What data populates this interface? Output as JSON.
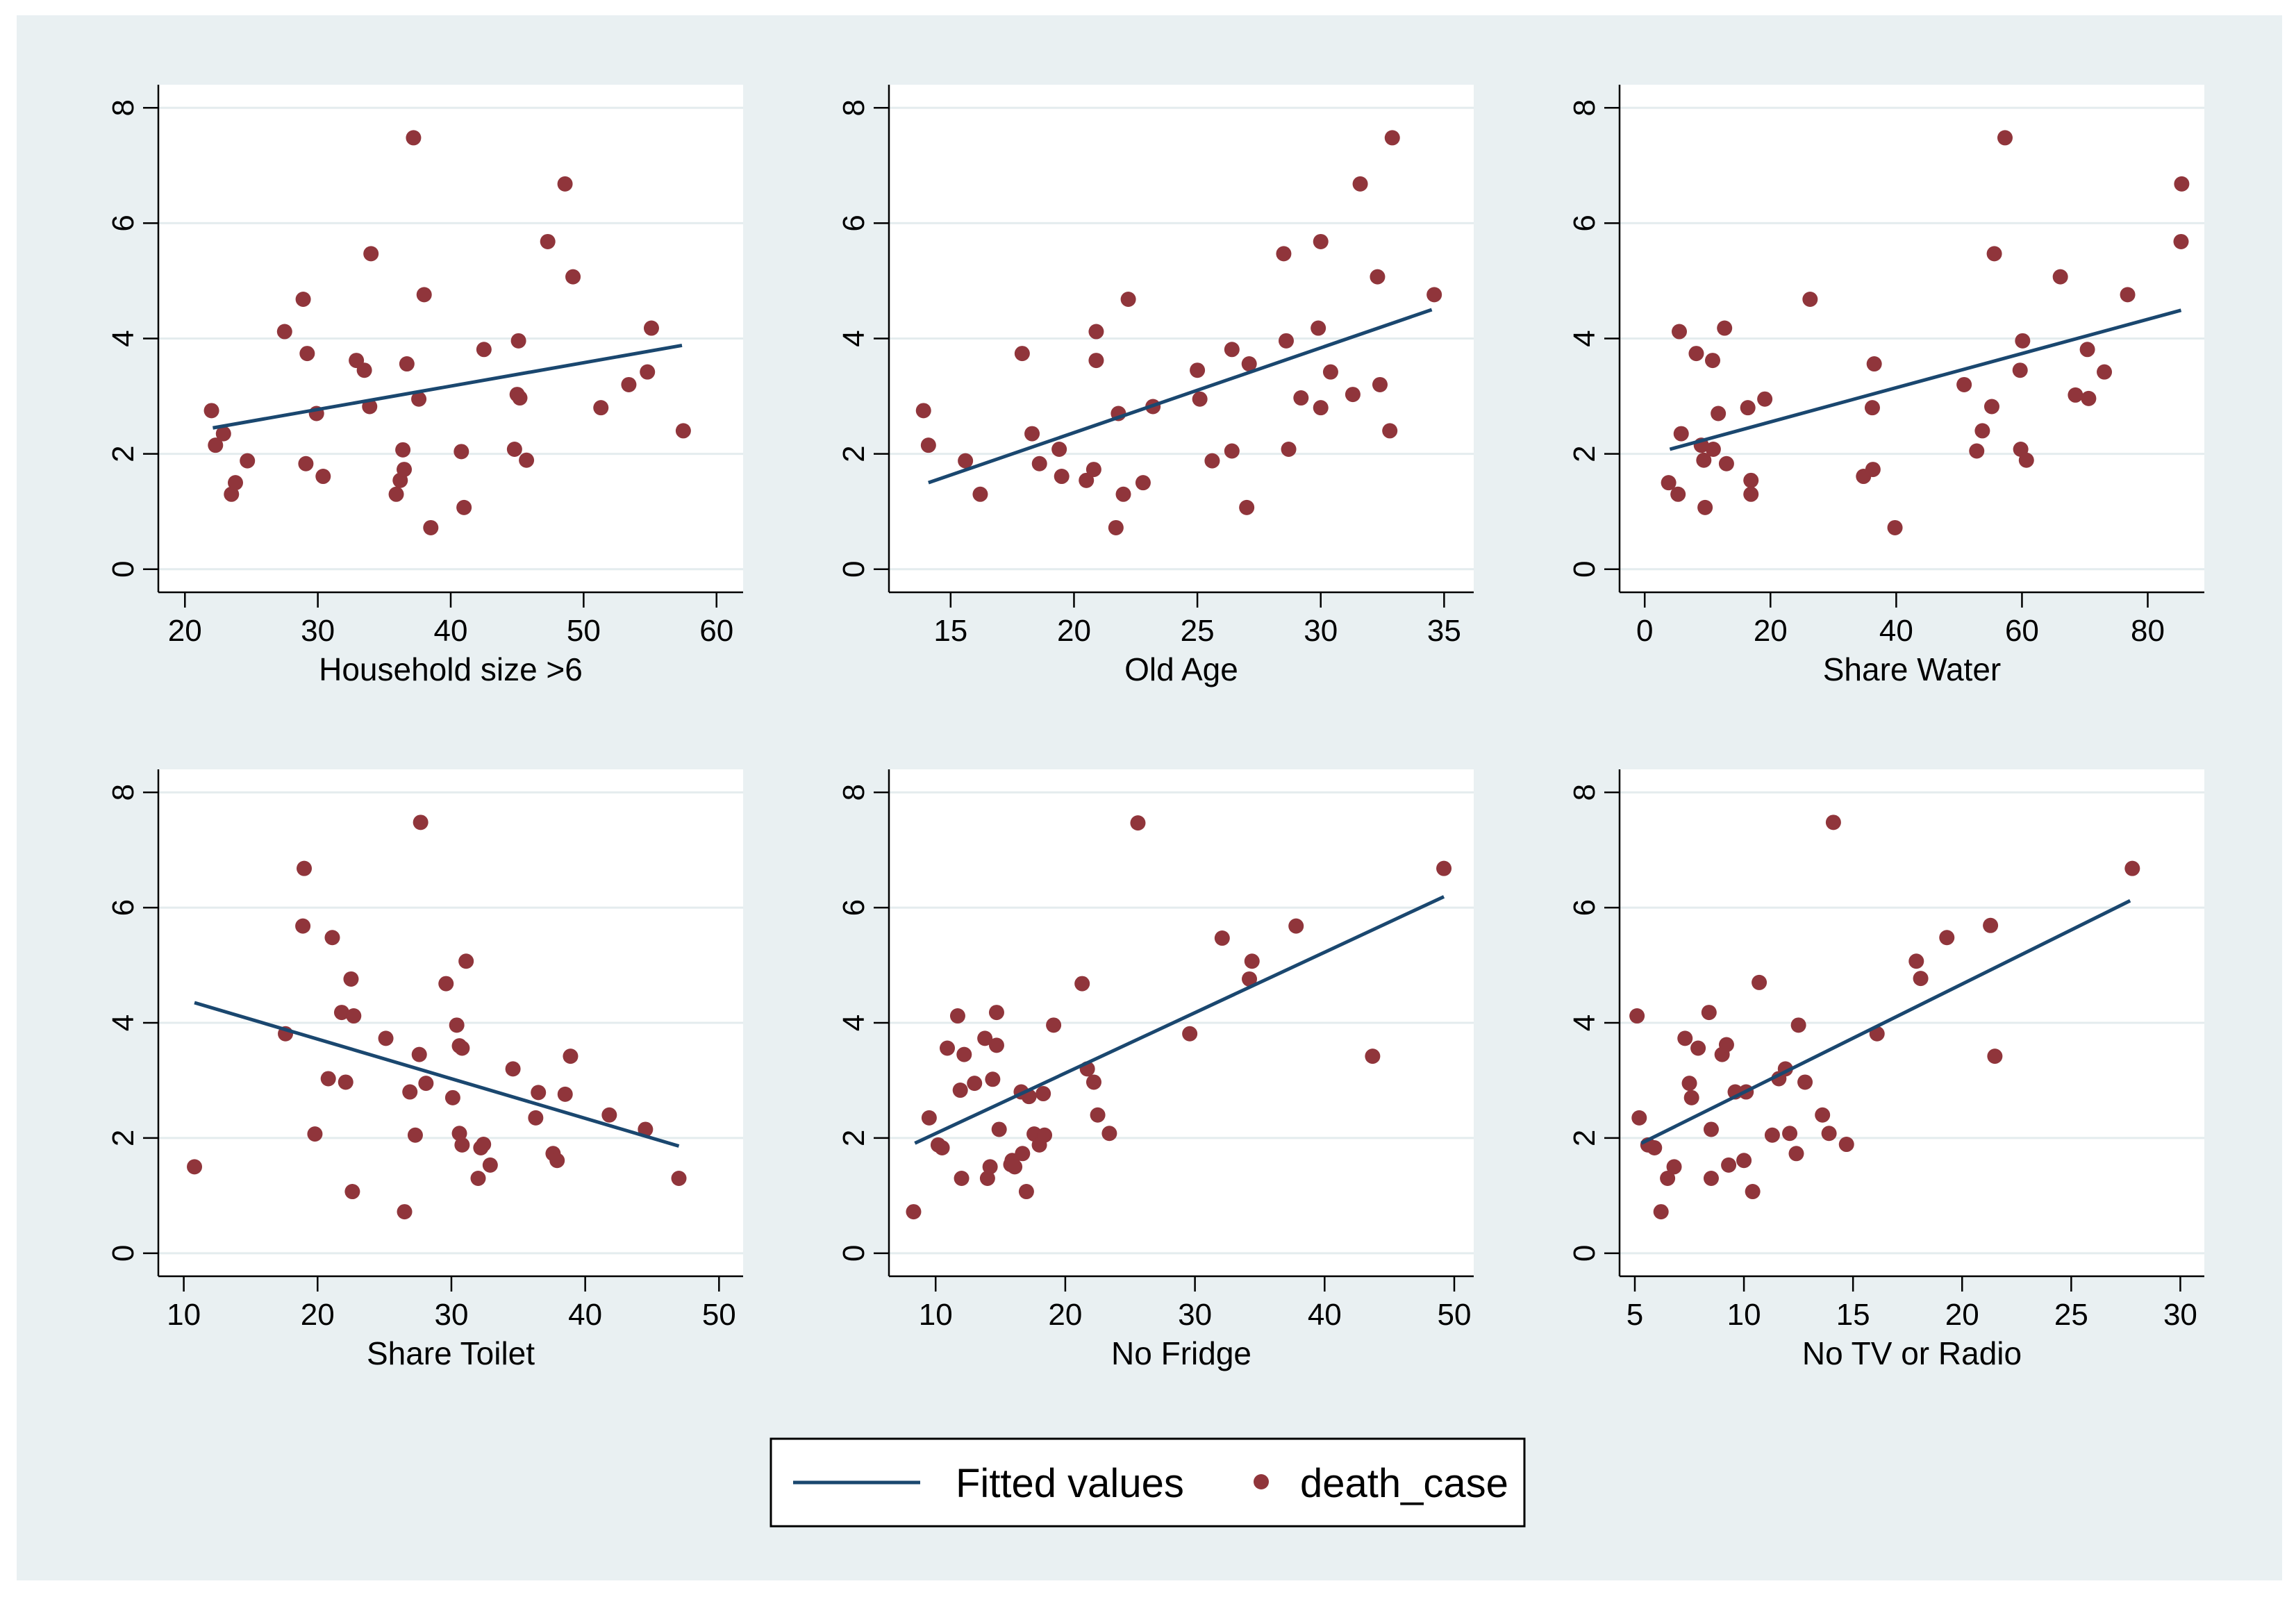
{
  "colors": {
    "outer_background": "#e9f0f2",
    "plot_background": "#ffffff",
    "gridline": "#e4ecee",
    "axis": "#000000",
    "fit_line": "#1a476f",
    "marker": "#90353b"
  },
  "legend": {
    "fitted_label": "Fitted values",
    "points_label": "death_case",
    "placement": "bottom-center"
  },
  "chart_data": [
    {
      "type": "scatter",
      "overlay": "linear-fit",
      "title": "",
      "xlabel": "Household size >6",
      "ylabel": "",
      "xlim": [
        18,
        62
      ],
      "ylim": [
        -0.4,
        8.4
      ],
      "xticks": [
        20,
        30,
        40,
        50,
        60
      ],
      "yticks": [
        0,
        2,
        4,
        6,
        8
      ],
      "grid": true,
      "fit": {
        "x": [
          22.1,
          57.4
        ],
        "y": [
          2.45,
          3.88
        ]
      },
      "points": [
        [
          22.0,
          2.75
        ],
        [
          22.3,
          2.15
        ],
        [
          22.9,
          2.35
        ],
        [
          23.5,
          1.3
        ],
        [
          23.8,
          1.5
        ],
        [
          24.7,
          1.88
        ],
        [
          27.5,
          4.12
        ],
        [
          28.9,
          4.68
        ],
        [
          29.1,
          1.83
        ],
        [
          29.2,
          3.74
        ],
        [
          29.9,
          2.7
        ],
        [
          30.4,
          1.61
        ],
        [
          32.9,
          3.62
        ],
        [
          33.5,
          3.45
        ],
        [
          33.9,
          2.82
        ],
        [
          34.0,
          5.47
        ],
        [
          35.9,
          1.3
        ],
        [
          36.2,
          1.54
        ],
        [
          36.4,
          2.07
        ],
        [
          36.5,
          1.73
        ],
        [
          36.7,
          3.56
        ],
        [
          37.2,
          7.48
        ],
        [
          37.6,
          2.95
        ],
        [
          38.0,
          4.76
        ],
        [
          38.5,
          0.72
        ],
        [
          40.8,
          2.04
        ],
        [
          41.0,
          1.07
        ],
        [
          42.5,
          3.81
        ],
        [
          44.8,
          2.08
        ],
        [
          45.0,
          3.03
        ],
        [
          45.1,
          3.96
        ],
        [
          45.2,
          2.97
        ],
        [
          45.7,
          1.89
        ],
        [
          47.3,
          5.68
        ],
        [
          48.6,
          6.68
        ],
        [
          49.2,
          5.07
        ],
        [
          51.3,
          2.8
        ],
        [
          53.4,
          3.2
        ],
        [
          54.8,
          3.42
        ],
        [
          55.1,
          4.18
        ],
        [
          57.5,
          2.4
        ]
      ]
    },
    {
      "type": "scatter",
      "overlay": "linear-fit",
      "title": "",
      "xlabel": "Old Age",
      "ylabel": "",
      "xlim": [
        12.5,
        36.2
      ],
      "ylim": [
        -0.4,
        8.4
      ],
      "xticks": [
        15,
        20,
        25,
        30,
        35
      ],
      "yticks": [
        0,
        2,
        4,
        6,
        8
      ],
      "grid": true,
      "fit": {
        "x": [
          14.1,
          34.5
        ],
        "y": [
          1.5,
          4.5
        ]
      },
      "points": [
        [
          13.9,
          2.75
        ],
        [
          14.1,
          2.15
        ],
        [
          15.6,
          1.88
        ],
        [
          16.2,
          1.3
        ],
        [
          17.9,
          3.74
        ],
        [
          18.3,
          2.35
        ],
        [
          18.6,
          1.83
        ],
        [
          19.4,
          2.08
        ],
        [
          19.5,
          1.61
        ],
        [
          20.5,
          1.54
        ],
        [
          20.8,
          1.73
        ],
        [
          20.9,
          4.12
        ],
        [
          20.9,
          3.62
        ],
        [
          21.7,
          0.72
        ],
        [
          21.8,
          2.7
        ],
        [
          22.0,
          1.3
        ],
        [
          22.2,
          4.68
        ],
        [
          22.8,
          1.5
        ],
        [
          23.2,
          2.82
        ],
        [
          25.0,
          3.45
        ],
        [
          25.1,
          2.95
        ],
        [
          25.6,
          1.88
        ],
        [
          26.4,
          3.81
        ],
        [
          26.4,
          2.05
        ],
        [
          27.0,
          1.07
        ],
        [
          27.1,
          3.56
        ],
        [
          28.5,
          5.47
        ],
        [
          28.6,
          3.96
        ],
        [
          28.7,
          2.08
        ],
        [
          29.2,
          2.97
        ],
        [
          29.9,
          4.18
        ],
        [
          30.0,
          5.68
        ],
        [
          30.0,
          2.8
        ],
        [
          30.4,
          3.42
        ],
        [
          31.3,
          3.03
        ],
        [
          31.6,
          6.68
        ],
        [
          32.3,
          5.07
        ],
        [
          32.4,
          3.2
        ],
        [
          32.8,
          2.4
        ],
        [
          32.9,
          7.48
        ],
        [
          34.6,
          4.76
        ]
      ]
    },
    {
      "type": "scatter",
      "overlay": "linear-fit",
      "title": "",
      "xlabel": "Share Water",
      "ylabel": "",
      "xlim": [
        -4,
        89
      ],
      "ylim": [
        -0.4,
        8.4
      ],
      "xticks": [
        0,
        20,
        40,
        60,
        80
      ],
      "yticks": [
        0,
        2,
        4,
        6,
        8
      ],
      "grid": true,
      "fit": {
        "x": [
          4.0,
          85.3
        ],
        "y": [
          2.08,
          4.49
        ]
      },
      "points": [
        [
          3.8,
          1.5
        ],
        [
          5.3,
          1.3
        ],
        [
          5.5,
          4.12
        ],
        [
          5.8,
          2.35
        ],
        [
          8.2,
          3.74
        ],
        [
          9.0,
          2.15
        ],
        [
          9.4,
          1.89
        ],
        [
          9.6,
          1.07
        ],
        [
          10.8,
          3.62
        ],
        [
          10.9,
          2.08
        ],
        [
          11.7,
          2.7
        ],
        [
          12.7,
          4.18
        ],
        [
          13.0,
          1.83
        ],
        [
          16.4,
          2.8
        ],
        [
          16.9,
          1.54
        ],
        [
          16.9,
          1.3
        ],
        [
          19.1,
          2.95
        ],
        [
          26.3,
          4.68
        ],
        [
          34.8,
          1.61
        ],
        [
          36.2,
          2.8
        ],
        [
          36.3,
          1.73
        ],
        [
          36.5,
          3.56
        ],
        [
          39.8,
          0.72
        ],
        [
          50.8,
          3.2
        ],
        [
          52.8,
          2.05
        ],
        [
          53.7,
          2.4
        ],
        [
          55.2,
          2.82
        ],
        [
          55.6,
          5.47
        ],
        [
          57.3,
          7.48
        ],
        [
          59.7,
          3.45
        ],
        [
          59.8,
          2.08
        ],
        [
          60.1,
          3.96
        ],
        [
          60.7,
          1.89
        ],
        [
          66.1,
          5.07
        ],
        [
          68.5,
          3.02
        ],
        [
          70.4,
          3.81
        ],
        [
          70.6,
          2.96
        ],
        [
          73.1,
          3.42
        ],
        [
          76.8,
          4.76
        ],
        [
          85.3,
          5.68
        ],
        [
          85.4,
          6.68
        ]
      ]
    },
    {
      "type": "scatter",
      "overlay": "linear-fit",
      "title": "",
      "xlabel": "Share Toilet",
      "ylabel": "",
      "xlim": [
        8.1,
        51.8
      ],
      "ylim": [
        -0.4,
        8.4
      ],
      "xticks": [
        10,
        20,
        30,
        40,
        50
      ],
      "yticks": [
        0,
        2,
        4,
        6,
        8
      ],
      "grid": true,
      "fit": {
        "x": [
          10.8,
          47.0
        ],
        "y": [
          4.35,
          1.86
        ]
      },
      "points": [
        [
          10.8,
          1.5
        ],
        [
          17.6,
          3.81
        ],
        [
          18.9,
          5.68
        ],
        [
          19.0,
          6.68
        ],
        [
          19.8,
          2.07
        ],
        [
          20.8,
          3.03
        ],
        [
          21.1,
          5.48
        ],
        [
          21.8,
          4.18
        ],
        [
          22.1,
          2.97
        ],
        [
          22.5,
          4.76
        ],
        [
          22.6,
          1.07
        ],
        [
          22.7,
          4.12
        ],
        [
          25.1,
          3.73
        ],
        [
          26.5,
          0.72
        ],
        [
          26.9,
          2.8
        ],
        [
          27.3,
          2.05
        ],
        [
          27.6,
          3.45
        ],
        [
          27.7,
          7.48
        ],
        [
          28.1,
          2.95
        ],
        [
          29.6,
          4.68
        ],
        [
          30.1,
          2.7
        ],
        [
          30.4,
          3.96
        ],
        [
          30.6,
          3.6
        ],
        [
          30.6,
          2.08
        ],
        [
          30.8,
          3.56
        ],
        [
          30.8,
          1.88
        ],
        [
          31.1,
          5.07
        ],
        [
          32.0,
          1.3
        ],
        [
          32.2,
          1.83
        ],
        [
          32.4,
          1.89
        ],
        [
          32.9,
          1.53
        ],
        [
          34.6,
          3.2
        ],
        [
          36.3,
          2.35
        ],
        [
          36.5,
          2.79
        ],
        [
          37.6,
          1.73
        ],
        [
          37.9,
          1.61
        ],
        [
          38.5,
          2.76
        ],
        [
          38.9,
          3.42
        ],
        [
          41.8,
          2.4
        ],
        [
          44.5,
          2.15
        ],
        [
          47.0,
          1.3
        ]
      ]
    },
    {
      "type": "scatter",
      "overlay": "linear-fit",
      "title": "",
      "xlabel": "No Fridge",
      "ylabel": "",
      "xlim": [
        6.4,
        51.5
      ],
      "ylim": [
        -0.4,
        8.4
      ],
      "xticks": [
        10,
        20,
        30,
        40,
        50
      ],
      "yticks": [
        0,
        2,
        4,
        6,
        8
      ],
      "grid": true,
      "fit": {
        "x": [
          8.4,
          49.2
        ],
        "y": [
          1.91,
          6.19
        ]
      },
      "points": [
        [
          8.3,
          0.72
        ],
        [
          9.5,
          2.35
        ],
        [
          10.2,
          1.88
        ],
        [
          10.5,
          1.83
        ],
        [
          10.9,
          3.56
        ],
        [
          11.7,
          4.12
        ],
        [
          11.9,
          2.83
        ],
        [
          12.0,
          1.3
        ],
        [
          12.2,
          3.45
        ],
        [
          13.0,
          2.95
        ],
        [
          13.8,
          3.73
        ],
        [
          14.0,
          1.3
        ],
        [
          14.2,
          1.5
        ],
        [
          14.4,
          3.02
        ],
        [
          14.7,
          4.18
        ],
        [
          14.7,
          3.61
        ],
        [
          14.9,
          2.15
        ],
        [
          15.8,
          1.54
        ],
        [
          15.9,
          1.61
        ],
        [
          16.1,
          1.5
        ],
        [
          16.6,
          2.8
        ],
        [
          16.7,
          1.73
        ],
        [
          17.0,
          1.07
        ],
        [
          17.2,
          2.72
        ],
        [
          17.6,
          2.07
        ],
        [
          18.0,
          1.88
        ],
        [
          18.3,
          2.77
        ],
        [
          18.4,
          2.05
        ],
        [
          19.1,
          3.96
        ],
        [
          21.3,
          4.68
        ],
        [
          21.7,
          3.2
        ],
        [
          22.2,
          2.97
        ],
        [
          22.5,
          2.4
        ],
        [
          23.4,
          2.08
        ],
        [
          25.6,
          7.47
        ],
        [
          29.6,
          3.81
        ],
        [
          32.1,
          5.47
        ],
        [
          34.2,
          4.76
        ],
        [
          34.4,
          5.07
        ],
        [
          37.8,
          5.68
        ],
        [
          43.7,
          3.42
        ],
        [
          49.2,
          6.68
        ]
      ]
    },
    {
      "type": "scatter",
      "overlay": "linear-fit",
      "title": "",
      "xlabel": "No TV or Radio",
      "ylabel": "",
      "xlim": [
        4.3,
        31.1
      ],
      "ylim": [
        -0.4,
        8.4
      ],
      "xticks": [
        5,
        10,
        15,
        20,
        25,
        30
      ],
      "yticks": [
        0,
        2,
        4,
        6,
        8
      ],
      "grid": true,
      "fit": {
        "x": [
          5.3,
          27.7
        ],
        "y": [
          1.91,
          6.12
        ]
      },
      "points": [
        [
          5.1,
          4.12
        ],
        [
          5.2,
          2.35
        ],
        [
          5.6,
          1.88
        ],
        [
          5.9,
          1.83
        ],
        [
          6.2,
          0.72
        ],
        [
          6.5,
          1.3
        ],
        [
          6.8,
          1.5
        ],
        [
          7.3,
          3.73
        ],
        [
          7.5,
          2.95
        ],
        [
          7.6,
          2.7
        ],
        [
          7.9,
          3.56
        ],
        [
          8.4,
          4.18
        ],
        [
          8.5,
          2.15
        ],
        [
          8.5,
          1.3
        ],
        [
          9.0,
          3.45
        ],
        [
          9.2,
          3.62
        ],
        [
          9.3,
          1.53
        ],
        [
          9.6,
          2.8
        ],
        [
          10.0,
          1.61
        ],
        [
          10.1,
          2.8
        ],
        [
          10.4,
          1.07
        ],
        [
          10.7,
          4.7
        ],
        [
          11.3,
          2.05
        ],
        [
          11.6,
          3.03
        ],
        [
          11.9,
          3.2
        ],
        [
          12.1,
          2.08
        ],
        [
          12.4,
          1.73
        ],
        [
          12.5,
          3.96
        ],
        [
          12.8,
          2.97
        ],
        [
          13.6,
          2.4
        ],
        [
          13.9,
          2.08
        ],
        [
          14.1,
          7.48
        ],
        [
          14.7,
          1.89
        ],
        [
          16.1,
          3.81
        ],
        [
          17.9,
          5.07
        ],
        [
          18.1,
          4.77
        ],
        [
          19.3,
          5.48
        ],
        [
          21.3,
          5.69
        ],
        [
          21.5,
          3.42
        ],
        [
          27.8,
          6.68
        ]
      ]
    }
  ]
}
